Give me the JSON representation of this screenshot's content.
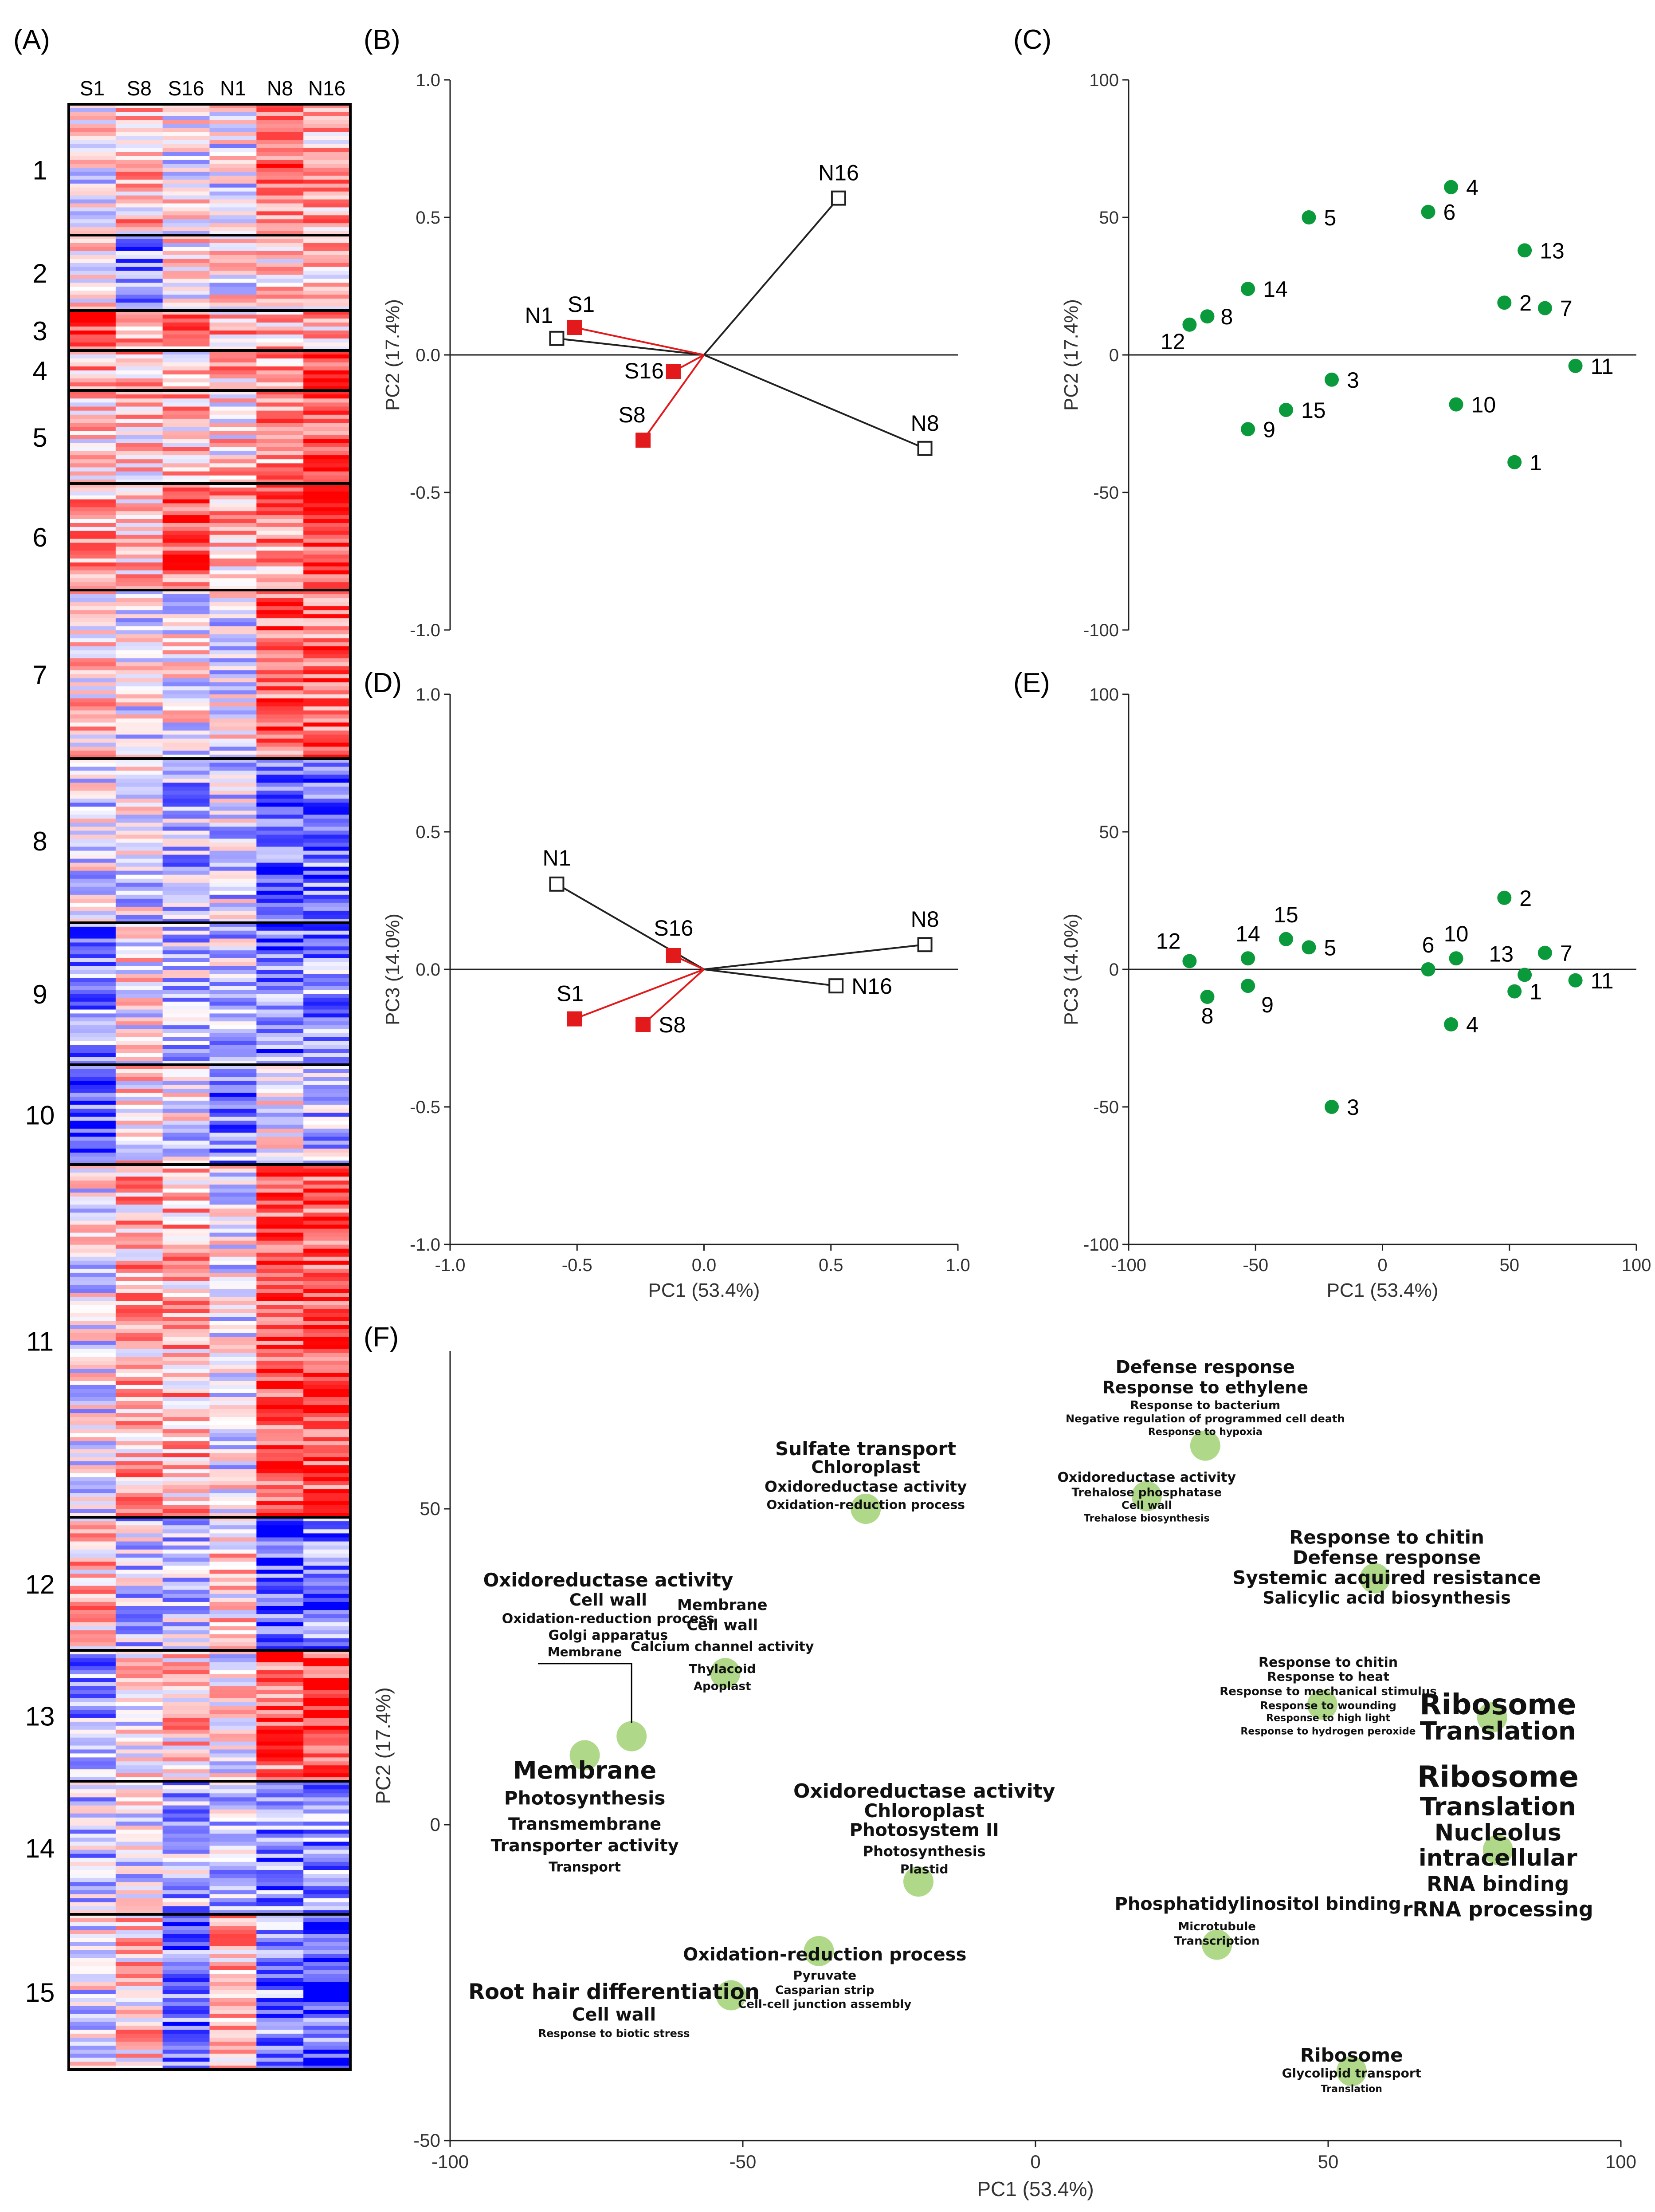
{
  "chart_data": [
    {
      "panel": "(A)",
      "type": "heatmap",
      "columns": [
        "S1",
        "S8",
        "S16",
        "N1",
        "N8",
        "N16"
      ],
      "clusters": [
        {
          "label": "1",
          "pattern": [
            0,
            0.25,
            0,
            -0.05,
            0.55,
            0.3
          ]
        },
        {
          "label": "2",
          "pattern": [
            0,
            -0.5,
            0.1,
            0,
            0.25,
            0.2
          ]
        },
        {
          "label": "3",
          "pattern": [
            0.75,
            0.35,
            0.4,
            0.3,
            0.35,
            0.3
          ]
        },
        {
          "label": "4",
          "pattern": [
            0.35,
            0.3,
            0.15,
            0.3,
            0.45,
            0.85
          ]
        },
        {
          "label": "5",
          "pattern": [
            0.15,
            0.2,
            0.25,
            0.15,
            0.4,
            0.75
          ]
        },
        {
          "label": "6",
          "pattern": [
            0.35,
            0.3,
            0.6,
            0.3,
            0.45,
            0.7
          ]
        },
        {
          "label": "7",
          "pattern": [
            0.15,
            -0.05,
            0,
            -0.05,
            0.65,
            0.6
          ]
        },
        {
          "label": "8",
          "pattern": [
            -0.1,
            -0.1,
            -0.3,
            -0.15,
            -0.65,
            -0.55
          ]
        },
        {
          "label": "9",
          "pattern": [
            -0.5,
            0.05,
            -0.25,
            -0.2,
            -0.55,
            -0.45
          ]
        },
        {
          "label": "10",
          "pattern": [
            -0.65,
            0.15,
            -0.1,
            -0.5,
            -0.05,
            -0.25
          ]
        },
        {
          "label": "11",
          "pattern": [
            -0.05,
            0.3,
            0.3,
            -0.05,
            0.7,
            0.7
          ]
        },
        {
          "label": "12",
          "pattern": [
            0.25,
            -0.2,
            -0.25,
            0.15,
            -0.65,
            -0.55
          ]
        },
        {
          "label": "13",
          "pattern": [
            -0.4,
            0.05,
            0.2,
            0,
            0.55,
            0.75
          ]
        },
        {
          "label": "14",
          "pattern": [
            -0.25,
            -0.1,
            -0.3,
            -0.2,
            -0.5,
            -0.45
          ]
        },
        {
          "label": "15",
          "pattern": [
            -0.1,
            0.2,
            -0.6,
            0.25,
            -0.5,
            -0.65
          ]
        }
      ]
    },
    {
      "panel": "(B)",
      "type": "scatter",
      "xlim": [
        -1.0,
        1.0
      ],
      "ylim": [
        -1.0,
        1.0
      ],
      "ylabel": "PC2 (17.4%)",
      "yticks": [
        "1.0",
        "0.5",
        "0.0",
        "-0.5",
        "-1.0"
      ],
      "groups": [
        {
          "name": "N",
          "color": "#ffffff",
          "points": [
            {
              "label": "N1",
              "x": -0.58,
              "y": 0.06
            },
            {
              "label": "N8",
              "x": 0.87,
              "y": -0.34
            },
            {
              "label": "N16",
              "x": 0.53,
              "y": 0.57
            }
          ]
        },
        {
          "name": "S",
          "color": "#e31a1c",
          "points": [
            {
              "label": "S1",
              "x": -0.51,
              "y": 0.1
            },
            {
              "label": "S8",
              "x": -0.24,
              "y": -0.31
            },
            {
              "label": "S16",
              "x": -0.12,
              "y": -0.06
            }
          ]
        }
      ]
    },
    {
      "panel": "(C)",
      "type": "scatter",
      "xlim": [
        -100,
        100
      ],
      "ylim": [
        -100,
        100
      ],
      "ylabel": "PC2 (17.4%)",
      "yticks": [
        "100",
        "50",
        "0",
        "-50",
        "-100"
      ],
      "points": [
        {
          "label": "1",
          "x": 52,
          "y": -39
        },
        {
          "label": "2",
          "x": 48,
          "y": 19
        },
        {
          "label": "3",
          "x": -20,
          "y": -9
        },
        {
          "label": "4",
          "x": 27,
          "y": 61
        },
        {
          "label": "5",
          "x": -29,
          "y": 50
        },
        {
          "label": "6",
          "x": 18,
          "y": 52
        },
        {
          "label": "7",
          "x": 64,
          "y": 17
        },
        {
          "label": "8",
          "x": -69,
          "y": 14
        },
        {
          "label": "9",
          "x": -53,
          "y": -27
        },
        {
          "label": "10",
          "x": 29,
          "y": -18
        },
        {
          "label": "11",
          "x": 76,
          "y": -4
        },
        {
          "label": "12",
          "x": -76,
          "y": 11
        },
        {
          "label": "13",
          "x": 56,
          "y": 38
        },
        {
          "label": "14",
          "x": -53,
          "y": 24
        },
        {
          "label": "15",
          "x": -38,
          "y": -20
        }
      ]
    },
    {
      "panel": "(D)",
      "type": "scatter",
      "xlim": [
        -1.0,
        1.0
      ],
      "ylim": [
        -1.0,
        1.0
      ],
      "xlabel": "PC1 (53.4%)",
      "ylabel": "PC3 (14.0%)",
      "xticks": [
        "-1.0",
        "-0.5",
        "0.0",
        "0.5",
        "1.0"
      ],
      "yticks": [
        "1.0",
        "0.5",
        "0.0",
        "-0.5",
        "-1.0"
      ],
      "groups": [
        {
          "name": "N",
          "color": "#ffffff",
          "points": [
            {
              "label": "N1",
              "x": -0.58,
              "y": 0.31
            },
            {
              "label": "N8",
              "x": 0.87,
              "y": 0.09
            },
            {
              "label": "N16",
              "x": 0.52,
              "y": -0.06
            }
          ]
        },
        {
          "name": "S",
          "color": "#e31a1c",
          "points": [
            {
              "label": "S1",
              "x": -0.51,
              "y": -0.18
            },
            {
              "label": "S8",
              "x": -0.24,
              "y": -0.2
            },
            {
              "label": "S16",
              "x": -0.12,
              "y": 0.05
            }
          ]
        }
      ]
    },
    {
      "panel": "(E)",
      "type": "scatter",
      "xlim": [
        -100,
        100
      ],
      "ylim": [
        -100,
        100
      ],
      "xlabel": "PC1 (53.4%)",
      "ylabel": "PC3 (14.0%)",
      "xticks": [
        "-100",
        "-50",
        "0",
        "50",
        "100"
      ],
      "yticks": [
        "100",
        "50",
        "0",
        "-50",
        "-100"
      ],
      "points": [
        {
          "label": "1",
          "x": 52,
          "y": -8
        },
        {
          "label": "2",
          "x": 48,
          "y": 26
        },
        {
          "label": "3",
          "x": -20,
          "y": -50
        },
        {
          "label": "4",
          "x": 27,
          "y": -20
        },
        {
          "label": "5",
          "x": -29,
          "y": 8
        },
        {
          "label": "6",
          "x": 18,
          "y": 0
        },
        {
          "label": "7",
          "x": 64,
          "y": 6
        },
        {
          "label": "8",
          "x": -69,
          "y": -10
        },
        {
          "label": "9",
          "x": -53,
          "y": -6
        },
        {
          "label": "10",
          "x": 29,
          "y": 4
        },
        {
          "label": "11",
          "x": 76,
          "y": -4
        },
        {
          "label": "12",
          "x": -76,
          "y": 3
        },
        {
          "label": "13",
          "x": 56,
          "y": -2
        },
        {
          "label": "14",
          "x": -53,
          "y": 4
        },
        {
          "label": "15",
          "x": -38,
          "y": 11
        }
      ]
    },
    {
      "panel": "(F)",
      "type": "scatter",
      "xlim": [
        -100,
        100
      ],
      "ylim": [
        -50,
        75
      ],
      "xlabel": "PC1 (53.4%)",
      "ylabel": "PC2 (17.4%)",
      "xticks": [
        -100,
        -50,
        0,
        50,
        100
      ],
      "yticks": [
        50,
        0,
        -50
      ],
      "bubbles": [
        {
          "x": -77,
          "y": 11
        },
        {
          "x": -69,
          "y": 14
        },
        {
          "x": -53,
          "y": 24
        },
        {
          "x": -29,
          "y": 50
        },
        {
          "x": -52,
          "y": -27
        },
        {
          "x": -37,
          "y": -20
        },
        {
          "x": -20,
          "y": -9
        },
        {
          "x": 19,
          "y": 52
        },
        {
          "x": 29,
          "y": 60
        },
        {
          "x": 31,
          "y": -19
        },
        {
          "x": 58,
          "y": 39
        },
        {
          "x": 49,
          "y": 19
        },
        {
          "x": 54,
          "y": -39
        },
        {
          "x": 78,
          "y": 17
        },
        {
          "x": 79,
          "y": -4
        }
      ],
      "annotations": [
        {
          "x": -73,
          "y": 37.7,
          "size": 42,
          "lines": [
            "Oxidoreductase activity"
          ]
        },
        {
          "x": -73,
          "y": 34.7,
          "size": 37,
          "lines": [
            "Cell wall"
          ]
        },
        {
          "x": -73,
          "y": 31.9,
          "size": 30,
          "lines": [
            "Oxidation-reduction process"
          ]
        },
        {
          "x": -73,
          "y": 29.3,
          "size": 30,
          "lines": [
            "Golgi apparatus"
          ]
        },
        {
          "x": -77,
          "y": 26.7,
          "size": 28,
          "lines": [
            "Membrane"
          ]
        },
        {
          "x": -77,
          "y": 7.3,
          "size": 54,
          "lines": [
            "Membrane"
          ]
        },
        {
          "x": -77,
          "y": 3.2,
          "size": 42,
          "lines": [
            "Photosynthesis"
          ]
        },
        {
          "x": -77,
          "y": -0.8,
          "size": 38,
          "lines": [
            "Transmembrane"
          ]
        },
        {
          "x": -77,
          "y": -4.2,
          "size": 38,
          "lines": [
            "Transporter activity"
          ]
        },
        {
          "x": -77,
          "y": -7.4,
          "size": 30,
          "lines": [
            "Transport"
          ]
        },
        {
          "x": -53.5,
          "y": 34.0,
          "size": 34,
          "lines": [
            "Membrane"
          ]
        },
        {
          "x": -53.5,
          "y": 30.8,
          "size": 34,
          "lines": [
            "Cell wall"
          ]
        },
        {
          "x": -53.5,
          "y": 27.5,
          "size": 30,
          "lines": [
            "Calcium channel activity"
          ]
        },
        {
          "x": -53.5,
          "y": 24.0,
          "size": 28,
          "lines": [
            "Thylacoid"
          ]
        },
        {
          "x": -53.5,
          "y": 21.3,
          "size": 26,
          "lines": [
            "Apoplast"
          ]
        },
        {
          "x": -29,
          "y": 58.5,
          "size": 42,
          "lines": [
            "Sulfate transport"
          ]
        },
        {
          "x": -29,
          "y": 55.7,
          "size": 38,
          "lines": [
            "Chloroplast"
          ]
        },
        {
          "x": -29,
          "y": 52.7,
          "size": 34,
          "lines": [
            "Oxidoreductase activity"
          ]
        },
        {
          "x": -29,
          "y": 50.0,
          "size": 28,
          "lines": [
            "Oxidation-reduction process"
          ]
        },
        {
          "x": 29,
          "y": 71.5,
          "size": 40,
          "lines": [
            "Defense response"
          ]
        },
        {
          "x": 29,
          "y": 68.3,
          "size": 38,
          "lines": [
            "Response to ethylene"
          ]
        },
        {
          "x": 29,
          "y": 65.8,
          "size": 26,
          "lines": [
            "Response to bacterium"
          ]
        },
        {
          "x": 29,
          "y": 63.7,
          "size": 24,
          "lines": [
            "Negative regulation of programmed cell death"
          ]
        },
        {
          "x": 29,
          "y": 61.7,
          "size": 22,
          "lines": [
            "Response to hypoxia"
          ]
        },
        {
          "x": 19,
          "y": 54.3,
          "size": 30,
          "lines": [
            "Oxidoreductase activity"
          ]
        },
        {
          "x": 19,
          "y": 52.0,
          "size": 26,
          "lines": [
            "Trehalose phosphatase"
          ]
        },
        {
          "x": 19,
          "y": 50.0,
          "size": 24,
          "lines": [
            "Cell wall"
          ]
        },
        {
          "x": 19,
          "y": 48.0,
          "size": 22,
          "lines": [
            "Trehalose biosynthesis"
          ]
        },
        {
          "x": 60,
          "y": 44.5,
          "size": 42,
          "lines": [
            "Response to chitin"
          ]
        },
        {
          "x": 60,
          "y": 41.3,
          "size": 42,
          "lines": [
            "Defense response"
          ]
        },
        {
          "x": 60,
          "y": 38.1,
          "size": 42,
          "lines": [
            "Systemic acquired resistance"
          ]
        },
        {
          "x": 60,
          "y": 35.0,
          "size": 38,
          "lines": [
            "Salicylic acid biosynthesis"
          ]
        },
        {
          "x": 50,
          "y": 25.0,
          "size": 30,
          "lines": [
            "Response to chitin"
          ]
        },
        {
          "x": 50,
          "y": 22.8,
          "size": 28,
          "lines": [
            "Response to heat"
          ]
        },
        {
          "x": 50,
          "y": 20.5,
          "size": 26,
          "lines": [
            "Response to mechanical stimulus"
          ]
        },
        {
          "x": 50,
          "y": 18.3,
          "size": 24,
          "lines": [
            "Response to wounding"
          ]
        },
        {
          "x": 50,
          "y": 16.4,
          "size": 22,
          "lines": [
            "Response to high light"
          ]
        },
        {
          "x": 50,
          "y": 14.3,
          "size": 22,
          "lines": [
            "Response to hydrogen peroxide"
          ]
        },
        {
          "x": -19,
          "y": 4.3,
          "size": 44,
          "lines": [
            "Oxidoreductase activity"
          ]
        },
        {
          "x": -19,
          "y": 1.2,
          "size": 42,
          "lines": [
            "Chloroplast"
          ]
        },
        {
          "x": -19,
          "y": -1.8,
          "size": 40,
          "lines": [
            "Photosystem II"
          ]
        },
        {
          "x": -19,
          "y": -5.0,
          "size": 32,
          "lines": [
            "Photosynthesis"
          ]
        },
        {
          "x": -19,
          "y": -7.7,
          "size": 28,
          "lines": [
            "Plastid"
          ]
        },
        {
          "x": 79,
          "y": 17.5,
          "size": 64,
          "lines": [
            "Ribosome"
          ]
        },
        {
          "x": 79,
          "y": 13.5,
          "size": 56,
          "lines": [
            "Translation"
          ]
        },
        {
          "x": 79,
          "y": 6.0,
          "size": 66,
          "lines": [
            "Ribosome"
          ]
        },
        {
          "x": 79,
          "y": 1.5,
          "size": 56,
          "lines": [
            "Translation"
          ]
        },
        {
          "x": 79,
          "y": -2.5,
          "size": 52,
          "lines": [
            "Nucleolus"
          ]
        },
        {
          "x": 79,
          "y": -6.5,
          "size": 52,
          "lines": [
            "intracellular"
          ]
        },
        {
          "x": 79,
          "y": -10.5,
          "size": 46,
          "lines": [
            "RNA binding"
          ]
        },
        {
          "x": 79,
          "y": -14.5,
          "size": 46,
          "lines": [
            "rRNA processing"
          ]
        },
        {
          "x": 38,
          "y": -13.5,
          "size": 40,
          "lines": [
            "Phosphatidylinositol binding"
          ]
        },
        {
          "x": 31,
          "y": -16.7,
          "size": 26,
          "lines": [
            "Microtubule"
          ]
        },
        {
          "x": 31,
          "y": -19.0,
          "size": 26,
          "lines": [
            "Transcription"
          ]
        },
        {
          "x": -36,
          "y": -21.5,
          "size": 40,
          "lines": [
            "Oxidation-reduction process"
          ]
        },
        {
          "x": -36,
          "y": -24.5,
          "size": 28,
          "lines": [
            "Pyruvate"
          ]
        },
        {
          "x": -36,
          "y": -26.8,
          "size": 26,
          "lines": [
            "Casparian strip"
          ]
        },
        {
          "x": -36,
          "y": -29.0,
          "size": 26,
          "lines": [
            "Cell-cell junction assembly"
          ]
        },
        {
          "x": -72,
          "y": -27.6,
          "size": 48,
          "lines": [
            "Root hair differentiation"
          ]
        },
        {
          "x": -72,
          "y": -31.0,
          "size": 40,
          "lines": [
            "Cell wall"
          ]
        },
        {
          "x": -72,
          "y": -33.6,
          "size": 24,
          "lines": [
            "Response to biotic stress"
          ]
        },
        {
          "x": 54,
          "y": -37.5,
          "size": 42,
          "lines": [
            "Ribosome"
          ]
        },
        {
          "x": 54,
          "y": -40.0,
          "size": 28,
          "lines": [
            "Glycolipid transport"
          ]
        },
        {
          "x": 54,
          "y": -42.3,
          "size": 22,
          "lines": [
            "Translation"
          ]
        }
      ]
    }
  ]
}
